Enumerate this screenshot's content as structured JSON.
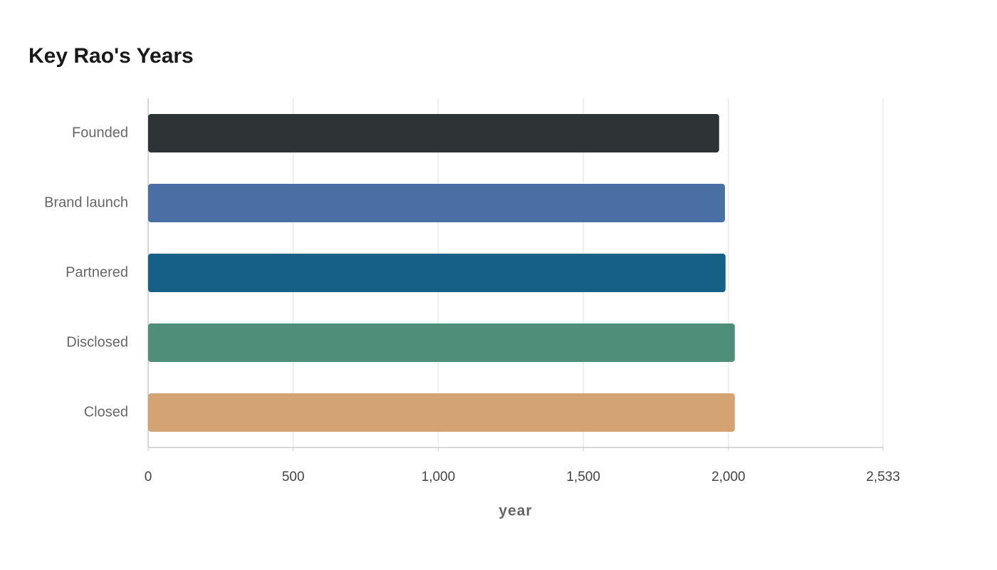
{
  "chart_data": {
    "type": "bar",
    "orientation": "horizontal",
    "title": "Key Rao's Years",
    "categories": [
      "Founded",
      "Brand launch",
      "Partnered",
      "Disclosed",
      "Closed"
    ],
    "values": [
      1968,
      1988,
      1990,
      2022,
      2022
    ],
    "colors": [
      "#2e3436",
      "#4a6fa5",
      "#166088",
      "#4f8f7a",
      "#d4a373"
    ],
    "xlabel": "year",
    "xlim": [
      0,
      2533
    ],
    "xticks": [
      0,
      500,
      {
        "value": 1000,
        "label": "1,000"
      },
      {
        "value": 1500,
        "label": "1,500"
      },
      {
        "value": 2000,
        "label": "2,000"
      },
      {
        "value": 2533,
        "label": "2,533"
      }
    ],
    "grid": true
  }
}
